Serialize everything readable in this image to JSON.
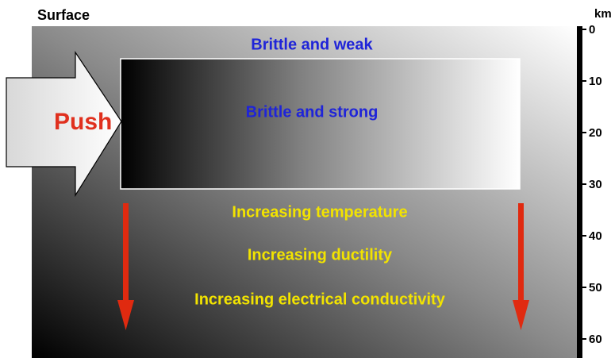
{
  "surface_label": "Surface",
  "push_label": "Push",
  "zones": {
    "top": "Brittle and weak",
    "upper_crust": "Brittle and strong"
  },
  "trends": [
    "Increasing temperature",
    "Increasing ductility",
    "Increasing electrical conductivity"
  ],
  "depth_axis": {
    "unit": "km",
    "ticks": [
      0,
      10,
      20,
      30,
      40,
      50,
      60
    ]
  }
}
